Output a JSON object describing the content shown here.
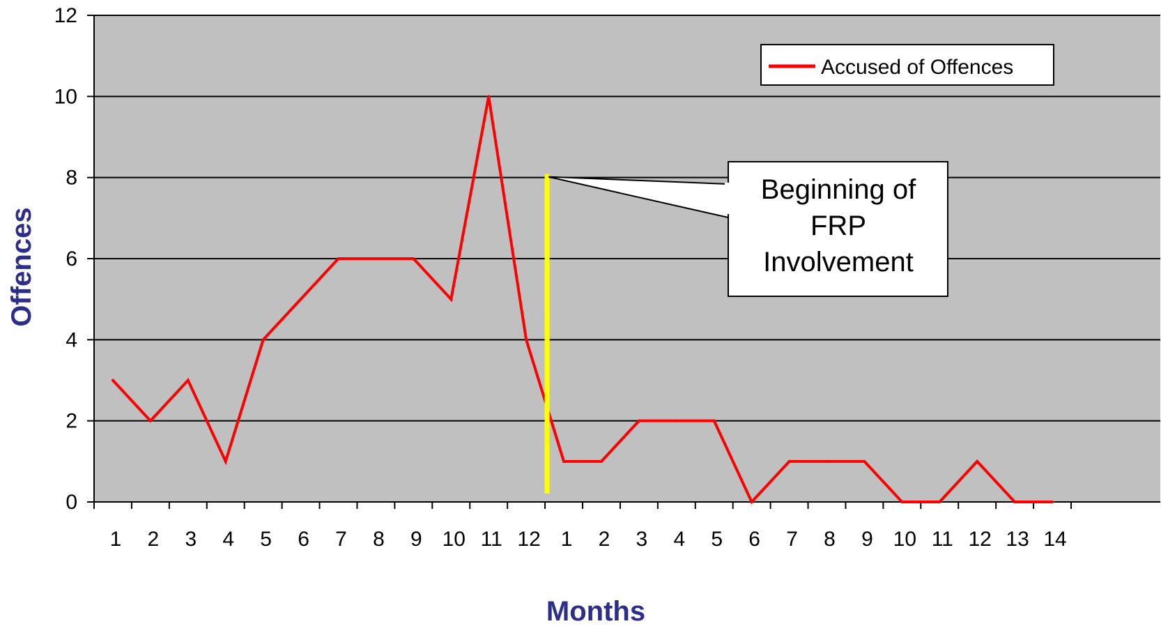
{
  "chart_data": {
    "type": "line",
    "title": "",
    "xlabel": "Months",
    "ylabel": "Offences",
    "ylim": [
      0,
      12
    ],
    "yticks": [
      0,
      2,
      4,
      6,
      8,
      10,
      12
    ],
    "categories": [
      "1",
      "2",
      "3",
      "4",
      "5",
      "6",
      "7",
      "8",
      "9",
      "10",
      "11",
      "12",
      "1",
      "2",
      "3",
      "4",
      "5",
      "6",
      "7",
      "8",
      "9",
      "10",
      "11",
      "12",
      "13",
      "14"
    ],
    "series": [
      {
        "name": "Accused of Offences",
        "values": [
          3,
          2,
          3,
          1,
          4,
          5,
          6,
          6,
          6,
          5,
          10,
          4,
          1,
          1,
          2,
          2,
          2,
          0,
          1,
          1,
          1,
          0,
          0,
          1,
          0,
          0
        ]
      }
    ],
    "grid": true,
    "legend": "top-right",
    "annotation": {
      "text_lines": [
        "Beginning of",
        "FRP",
        "Involvement"
      ],
      "marker_between_categories": [
        12,
        13
      ],
      "marker_y_top": 8
    }
  },
  "colors": {
    "plot_background": "#c0c0c0",
    "series_line": "#ff0000",
    "marker_line": "#ffff00",
    "axis_title": "#2d2d8a",
    "gridline": "#000000"
  }
}
